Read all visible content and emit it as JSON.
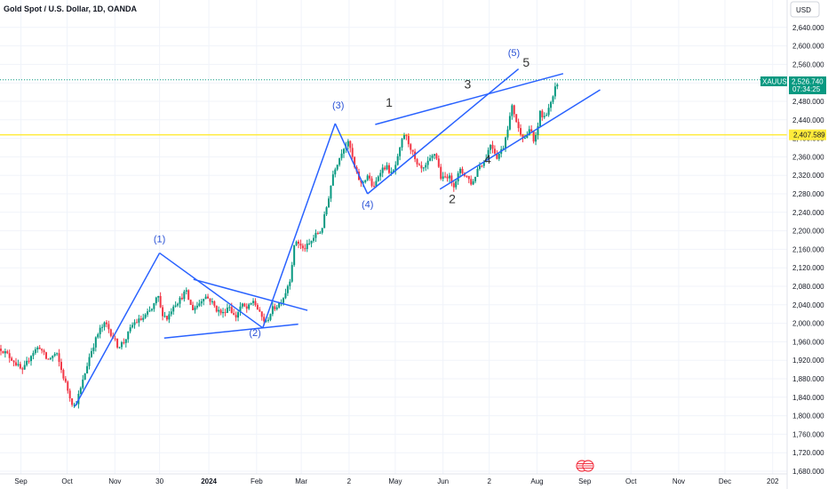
{
  "header": {
    "title": "Gold Spot / U.S. Dollar, 1D, OANDA",
    "currency": "USD"
  },
  "colors": {
    "up": "#089981",
    "down": "#f23645",
    "trend": "#2962ff",
    "level": "#ffeb3b",
    "tag": "#089981",
    "tag_level": "#ffeb3b"
  },
  "tags": {
    "symbol": "XAUUSD",
    "last_price": "2,526.740",
    "countdown": "07:34:25",
    "level_price": "2,407.589"
  },
  "chart_data": {
    "type": "candlestick",
    "title": "Gold Spot / U.S. Dollar, 1D, OANDA",
    "ylim": [
      1680,
      2680
    ],
    "y_ticks": [
      "1,680.000",
      "1,720.000",
      "1,760.000",
      "1,800.000",
      "1,840.000",
      "1,880.000",
      "1,920.000",
      "1,960.000",
      "2,000.000",
      "2,040.000",
      "2,080.000",
      "2,120.000",
      "2,160.000",
      "2,200.000",
      "2,240.000",
      "2,280.000",
      "2,320.000",
      "2,360.000",
      "2,400.000",
      "2,440.000",
      "2,480.000",
      "2,520.000",
      "2,560.000",
      "2,600.000",
      "2,640.000"
    ],
    "x_ticks": [
      {
        "label": "Sep",
        "day": 13,
        "bold": false
      },
      {
        "label": "Oct",
        "day": 43,
        "bold": false
      },
      {
        "label": "Nov",
        "day": 74,
        "bold": false
      },
      {
        "label": "30",
        "day": 103,
        "bold": false
      },
      {
        "label": "2024",
        "day": 135,
        "bold": true
      },
      {
        "label": "Feb",
        "day": 166,
        "bold": false
      },
      {
        "label": "Mar",
        "day": 195,
        "bold": false
      },
      {
        "label": "2",
        "day": 226,
        "bold": false
      },
      {
        "label": "May",
        "day": 256,
        "bold": false
      },
      {
        "label": "Jun",
        "day": 287,
        "bold": false
      },
      {
        "label": "2",
        "day": 317,
        "bold": false
      },
      {
        "label": "Aug",
        "day": 348,
        "bold": false
      },
      {
        "label": "Sep",
        "day": 379,
        "bold": false
      },
      {
        "label": "Oct",
        "day": 409,
        "bold": false
      },
      {
        "label": "Nov",
        "day": 440,
        "bold": false
      },
      {
        "label": "Dec",
        "day": 470,
        "bold": false
      },
      {
        "label": "202",
        "day": 501,
        "bold": false
      }
    ],
    "price_path": [
      [
        0,
        1945
      ],
      [
        8,
        1920
      ],
      [
        14,
        1895
      ],
      [
        20,
        1935
      ],
      [
        25,
        1950
      ],
      [
        30,
        1920
      ],
      [
        36,
        1935
      ],
      [
        40,
        1890
      ],
      [
        46,
        1830
      ],
      [
        48,
        1820
      ],
      [
        52,
        1860
      ],
      [
        58,
        1935
      ],
      [
        64,
        1985
      ],
      [
        68,
        2000
      ],
      [
        72,
        1975
      ],
      [
        76,
        1950
      ],
      [
        80,
        1960
      ],
      [
        86,
        2000
      ],
      [
        92,
        2010
      ],
      [
        98,
        2030
      ],
      [
        102,
        2060
      ],
      [
        104,
        2025
      ],
      [
        108,
        2010
      ],
      [
        112,
        2040
      ],
      [
        116,
        2050
      ],
      [
        120,
        2070
      ],
      [
        124,
        2030
      ],
      [
        128,
        2040
      ],
      [
        132,
        2060
      ],
      [
        136,
        2050
      ],
      [
        140,
        2030
      ],
      [
        144,
        2020
      ],
      [
        148,
        2040
      ],
      [
        152,
        2010
      ],
      [
        156,
        2040
      ],
      [
        160,
        2030
      ],
      [
        164,
        2050
      ],
      [
        168,
        2020
      ],
      [
        172,
        2000
      ],
      [
        176,
        2030
      ],
      [
        180,
        2040
      ],
      [
        184,
        2060
      ],
      [
        186,
        2080
      ],
      [
        188,
        2100
      ],
      [
        190,
        2160
      ],
      [
        192,
        2180
      ],
      [
        196,
        2160
      ],
      [
        200,
        2170
      ],
      [
        204,
        2190
      ],
      [
        208,
        2200
      ],
      [
        212,
        2260
      ],
      [
        216,
        2330
      ],
      [
        220,
        2360
      ],
      [
        222,
        2380
      ],
      [
        226,
        2390
      ],
      [
        230,
        2330
      ],
      [
        234,
        2300
      ],
      [
        238,
        2320
      ],
      [
        242,
        2290
      ],
      [
        246,
        2330
      ],
      [
        250,
        2340
      ],
      [
        254,
        2320
      ],
      [
        258,
        2360
      ],
      [
        260,
        2390
      ],
      [
        262,
        2410
      ],
      [
        266,
        2380
      ],
      [
        270,
        2340
      ],
      [
        274,
        2330
      ],
      [
        278,
        2350
      ],
      [
        282,
        2370
      ],
      [
        286,
        2310
      ],
      [
        290,
        2320
      ],
      [
        294,
        2300
      ],
      [
        298,
        2330
      ],
      [
        302,
        2320
      ],
      [
        306,
        2300
      ],
      [
        310,
        2340
      ],
      [
        314,
        2350
      ],
      [
        318,
        2390
      ],
      [
        322,
        2360
      ],
      [
        326,
        2380
      ],
      [
        330,
        2440
      ],
      [
        332,
        2470
      ],
      [
        336,
        2420
      ],
      [
        340,
        2400
      ],
      [
        344,
        2420
      ],
      [
        346,
        2390
      ],
      [
        348,
        2410
      ],
      [
        350,
        2460
      ],
      [
        352,
        2440
      ],
      [
        356,
        2470
      ],
      [
        358,
        2480
      ],
      [
        360,
        2510
      ],
      [
        362,
        2526.74
      ]
    ],
    "wave_labels": [
      {
        "text": "(1)",
        "day": 103,
        "price": 2175,
        "style": "blue"
      },
      {
        "text": "(2)",
        "day": 165,
        "price": 1972,
        "style": "blue"
      },
      {
        "text": "(3)",
        "day": 219,
        "price": 2465,
        "style": "blue"
      },
      {
        "text": "(4)",
        "day": 238,
        "price": 2250,
        "style": "blue"
      },
      {
        "text": "(5)",
        "day": 333,
        "price": 2578,
        "style": "blue"
      },
      {
        "text": "1",
        "day": 252,
        "price": 2468,
        "style": "black"
      },
      {
        "text": "2",
        "day": 293,
        "price": 2260,
        "style": "black"
      },
      {
        "text": "3",
        "day": 303,
        "price": 2508,
        "style": "black"
      },
      {
        "text": "4",
        "day": 316,
        "price": 2345,
        "style": "black"
      },
      {
        "text": "5",
        "day": 341,
        "price": 2555,
        "style": "black"
      }
    ],
    "trend_lines": [
      {
        "from": [
          48,
          1820
        ],
        "to": [
          103,
          2152
        ]
      },
      {
        "from": [
          103,
          2152
        ],
        "to": [
          170,
          1990
        ]
      },
      {
        "from": [
          170,
          1990
        ],
        "to": [
          217,
          2432
        ]
      },
      {
        "from": [
          217,
          2432
        ],
        "to": [
          238,
          2280
        ]
      },
      {
        "from": [
          238,
          2280
        ],
        "to": [
          336,
          2550
        ]
      },
      {
        "from": [
          106,
          1968
        ],
        "to": [
          193,
          1998
        ]
      },
      {
        "from": [
          125,
          2095
        ],
        "to": [
          199,
          2028
        ]
      },
      {
        "from": [
          243,
          2430
        ],
        "to": [
          365,
          2540
        ]
      },
      {
        "from": [
          285,
          2290
        ],
        "to": [
          389,
          2505
        ]
      }
    ],
    "horizontal_level": 2407.589,
    "last_price_level": 2526.74
  }
}
